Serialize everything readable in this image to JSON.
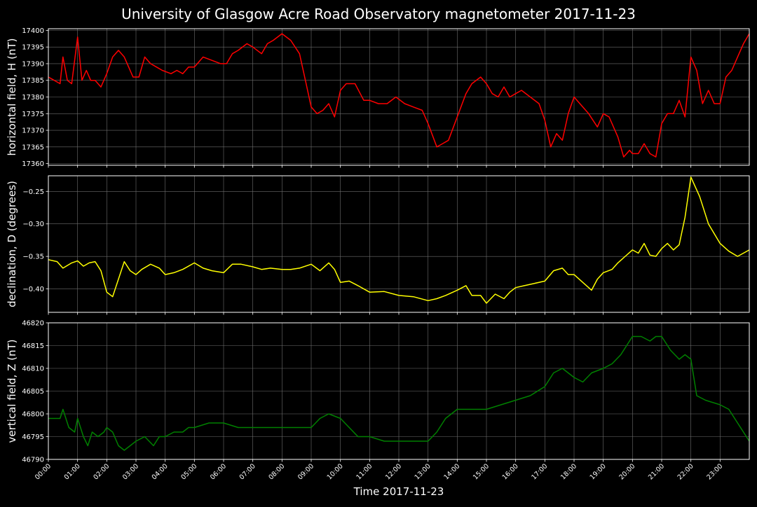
{
  "figure": {
    "title": "University of Glasgow Acre Road Observatory magnetometer 2017-11-23",
    "xlabel": "Time 2017-11-23"
  },
  "colors": {
    "background": "#000000",
    "grid": "#6e6e6e",
    "axes": "#ffffff",
    "H": "#ff0000",
    "D": "#ffff00",
    "Z": "#008000"
  },
  "chart_data": [
    {
      "type": "line",
      "ylabel": "horizontal field, H (nT)",
      "ylim": [
        17359.5,
        17400.5
      ],
      "yticks": [
        17360,
        17365,
        17370,
        17375,
        17380,
        17385,
        17390,
        17395,
        17400
      ],
      "ytick_labels": [
        "17360",
        "17365",
        "17370",
        "17375",
        "17380",
        "17385",
        "17390",
        "17395",
        "17400"
      ],
      "xlim": [
        0,
        24
      ],
      "x_unit": "hours",
      "grid": true,
      "series": [
        {
          "color": "#ff0000",
          "x": [
            0,
            0.2,
            0.4,
            0.5,
            0.65,
            0.8,
            1.0,
            1.15,
            1.3,
            1.45,
            1.6,
            1.8,
            2.0,
            2.2,
            2.4,
            2.6,
            2.9,
            3.1,
            3.3,
            3.5,
            3.7,
            3.9,
            4.2,
            4.4,
            4.6,
            4.8,
            5.0,
            5.3,
            5.6,
            5.9,
            6.1,
            6.3,
            6.5,
            6.8,
            7.0,
            7.3,
            7.5,
            7.7,
            8.0,
            8.3,
            8.6,
            8.8,
            9.0,
            9.2,
            9.4,
            9.6,
            9.8,
            10.0,
            10.2,
            10.5,
            10.8,
            11.0,
            11.3,
            11.6,
            11.9,
            12.2,
            12.5,
            12.8,
            13.0,
            13.3,
            13.5,
            13.7,
            14.0,
            14.3,
            14.5,
            14.8,
            15.0,
            15.2,
            15.4,
            15.6,
            15.8,
            16.0,
            16.2,
            16.5,
            16.8,
            17.0,
            17.2,
            17.4,
            17.6,
            17.8,
            18.0,
            18.2,
            18.5,
            18.8,
            19.0,
            19.2,
            19.5,
            19.7,
            19.9,
            20.0,
            20.2,
            20.4,
            20.6,
            20.8,
            21.0,
            21.2,
            21.4,
            21.6,
            21.8,
            22.0,
            22.2,
            22.4,
            22.6,
            22.8,
            23.0,
            23.2,
            23.4,
            23.6,
            23.8,
            24.0
          ],
          "values": [
            17386,
            17385,
            17384,
            17392,
            17385,
            17384,
            17398,
            17385,
            17388,
            17385,
            17385,
            17383,
            17387,
            17392,
            17394,
            17392,
            17386,
            17386,
            17392,
            17390,
            17389,
            17388,
            17387,
            17388,
            17387,
            17389,
            17389,
            17392,
            17391,
            17390,
            17390,
            17393,
            17394,
            17396,
            17395,
            17393,
            17396,
            17397,
            17399,
            17397,
            17393,
            17385,
            17377,
            17375,
            17376,
            17378,
            17374,
            17382,
            17384,
            17384,
            17379,
            17379,
            17378,
            17378,
            17380,
            17378,
            17377,
            17376,
            17372,
            17365,
            17366,
            17367,
            17374,
            17381,
            17384,
            17386,
            17384,
            17381,
            17380,
            17383,
            17380,
            17381,
            17382,
            17380,
            17378,
            17373,
            17365,
            17369,
            17367,
            17375,
            17380,
            17378,
            17375,
            17371,
            17375,
            17374,
            17368,
            17362,
            17364,
            17363,
            17363,
            17366,
            17363,
            17362,
            17372,
            17375,
            17375,
            17379,
            17374,
            17392,
            17388,
            17378,
            17382,
            17378,
            17378,
            17386,
            17388,
            17392,
            17396,
            17399
          ]
        }
      ]
    },
    {
      "type": "line",
      "ylabel": "declination, D (degrees)",
      "ylim": [
        -0.436,
        -0.226
      ],
      "yticks": [
        -0.4,
        -0.35,
        -0.3,
        -0.25
      ],
      "ytick_labels": [
        "−0.40",
        "−0.35",
        "−0.30",
        "−0.25"
      ],
      "xlim": [
        0,
        24
      ],
      "x_unit": "hours",
      "grid": true,
      "series": [
        {
          "color": "#ffff00",
          "x": [
            0,
            0.3,
            0.5,
            0.8,
            1.0,
            1.2,
            1.4,
            1.6,
            1.8,
            2.0,
            2.2,
            2.4,
            2.6,
            2.8,
            3.0,
            3.2,
            3.5,
            3.8,
            4.0,
            4.3,
            4.6,
            5.0,
            5.3,
            5.6,
            6.0,
            6.3,
            6.6,
            7.0,
            7.3,
            7.6,
            8.0,
            8.3,
            8.6,
            9.0,
            9.3,
            9.6,
            9.8,
            10.0,
            10.3,
            10.6,
            11.0,
            11.5,
            12.0,
            12.5,
            13.0,
            13.3,
            13.6,
            14.0,
            14.3,
            14.5,
            14.8,
            15.0,
            15.3,
            15.6,
            15.8,
            16.0,
            16.3,
            16.6,
            17.0,
            17.3,
            17.6,
            17.8,
            18.0,
            18.3,
            18.6,
            18.8,
            19.0,
            19.3,
            19.5,
            19.7,
            20.0,
            20.2,
            20.4,
            20.6,
            20.8,
            21.0,
            21.2,
            21.4,
            21.6,
            21.8,
            22.0,
            22.3,
            22.6,
            23.0,
            23.3,
            23.6,
            24.0
          ],
          "values": [
            -0.355,
            -0.358,
            -0.368,
            -0.36,
            -0.357,
            -0.365,
            -0.36,
            -0.358,
            -0.372,
            -0.405,
            -0.412,
            -0.385,
            -0.358,
            -0.372,
            -0.378,
            -0.37,
            -0.362,
            -0.368,
            -0.378,
            -0.375,
            -0.37,
            -0.36,
            -0.368,
            -0.372,
            -0.375,
            -0.362,
            -0.362,
            -0.366,
            -0.37,
            -0.368,
            -0.37,
            -0.37,
            -0.368,
            -0.362,
            -0.372,
            -0.36,
            -0.37,
            -0.39,
            -0.388,
            -0.395,
            -0.405,
            -0.404,
            -0.41,
            -0.412,
            -0.418,
            -0.415,
            -0.41,
            -0.402,
            -0.395,
            -0.41,
            -0.41,
            -0.422,
            -0.408,
            -0.415,
            -0.405,
            -0.398,
            -0.395,
            -0.392,
            -0.388,
            -0.372,
            -0.368,
            -0.378,
            -0.378,
            -0.39,
            -0.402,
            -0.385,
            -0.375,
            -0.37,
            -0.36,
            -0.352,
            -0.34,
            -0.345,
            -0.33,
            -0.348,
            -0.35,
            -0.338,
            -0.33,
            -0.34,
            -0.332,
            -0.29,
            -0.228,
            -0.258,
            -0.3,
            -0.33,
            -0.342,
            -0.35,
            -0.34
          ]
        }
      ]
    },
    {
      "type": "line",
      "ylabel": "vertical field, Z (nT)",
      "ylim": [
        46790,
        46820
      ],
      "yticks": [
        46790,
        46795,
        46800,
        46805,
        46810,
        46815,
        46820
      ],
      "ytick_labels": [
        "46790",
        "46795",
        "46800",
        "46805",
        "46810",
        "46815",
        "46820"
      ],
      "xlim": [
        0,
        24
      ],
      "x_unit": "hours",
      "grid": true,
      "xticks": [
        0,
        1,
        2,
        3,
        4,
        5,
        6,
        7,
        8,
        9,
        10,
        11,
        12,
        13,
        14,
        15,
        16,
        17,
        18,
        19,
        20,
        21,
        22,
        23
      ],
      "xtick_labels": [
        "00:00",
        "01:00",
        "02:00",
        "03:00",
        "04:00",
        "05:00",
        "06:00",
        "07:00",
        "08:00",
        "09:00",
        "10:00",
        "11:00",
        "12:00",
        "13:00",
        "14:00",
        "15:00",
        "16:00",
        "17:00",
        "18:00",
        "19:00",
        "20:00",
        "21:00",
        "22:00",
        "23:00"
      ],
      "series": [
        {
          "color": "#008000",
          "x": [
            0,
            0.2,
            0.4,
            0.5,
            0.7,
            0.9,
            1.0,
            1.2,
            1.35,
            1.5,
            1.7,
            1.9,
            2.0,
            2.2,
            2.4,
            2.6,
            2.8,
            3.0,
            3.3,
            3.6,
            3.8,
            4.0,
            4.3,
            4.6,
            4.8,
            5.0,
            5.5,
            6.0,
            6.5,
            7.0,
            7.5,
            8.0,
            8.5,
            9.0,
            9.3,
            9.6,
            10.0,
            10.3,
            10.6,
            11.0,
            11.5,
            12.0,
            12.5,
            13.0,
            13.3,
            13.6,
            14.0,
            14.5,
            15.0,
            15.5,
            16.0,
            16.5,
            17.0,
            17.3,
            17.6,
            18.0,
            18.3,
            18.6,
            19.0,
            19.3,
            19.6,
            20.0,
            20.3,
            20.6,
            20.8,
            21.0,
            21.3,
            21.6,
            21.8,
            22.0,
            22.2,
            22.5,
            23.0,
            23.3,
            23.6,
            24.0
          ],
          "values": [
            46799,
            46799,
            46799,
            46801,
            46797,
            46796,
            46799,
            46795,
            46793,
            46796,
            46795,
            46796,
            46797,
            46796,
            46793,
            46792,
            46793,
            46794,
            46795,
            46793,
            46795,
            46795,
            46796,
            46796,
            46797,
            46797,
            46798,
            46798,
            46797,
            46797,
            46797,
            46797,
            46797,
            46797,
            46799,
            46800,
            46799,
            46797,
            46795,
            46795,
            46794,
            46794,
            46794,
            46794,
            46796,
            46799,
            46801,
            46801,
            46801,
            46802,
            46803,
            46804,
            46806,
            46809,
            46810,
            46808,
            46807,
            46809,
            46810,
            46811,
            46813,
            46817,
            46817,
            46816,
            46817,
            46817,
            46814,
            46812,
            46813,
            46812,
            46804,
            46803,
            46802,
            46801,
            46798,
            46794
          ]
        }
      ]
    }
  ]
}
